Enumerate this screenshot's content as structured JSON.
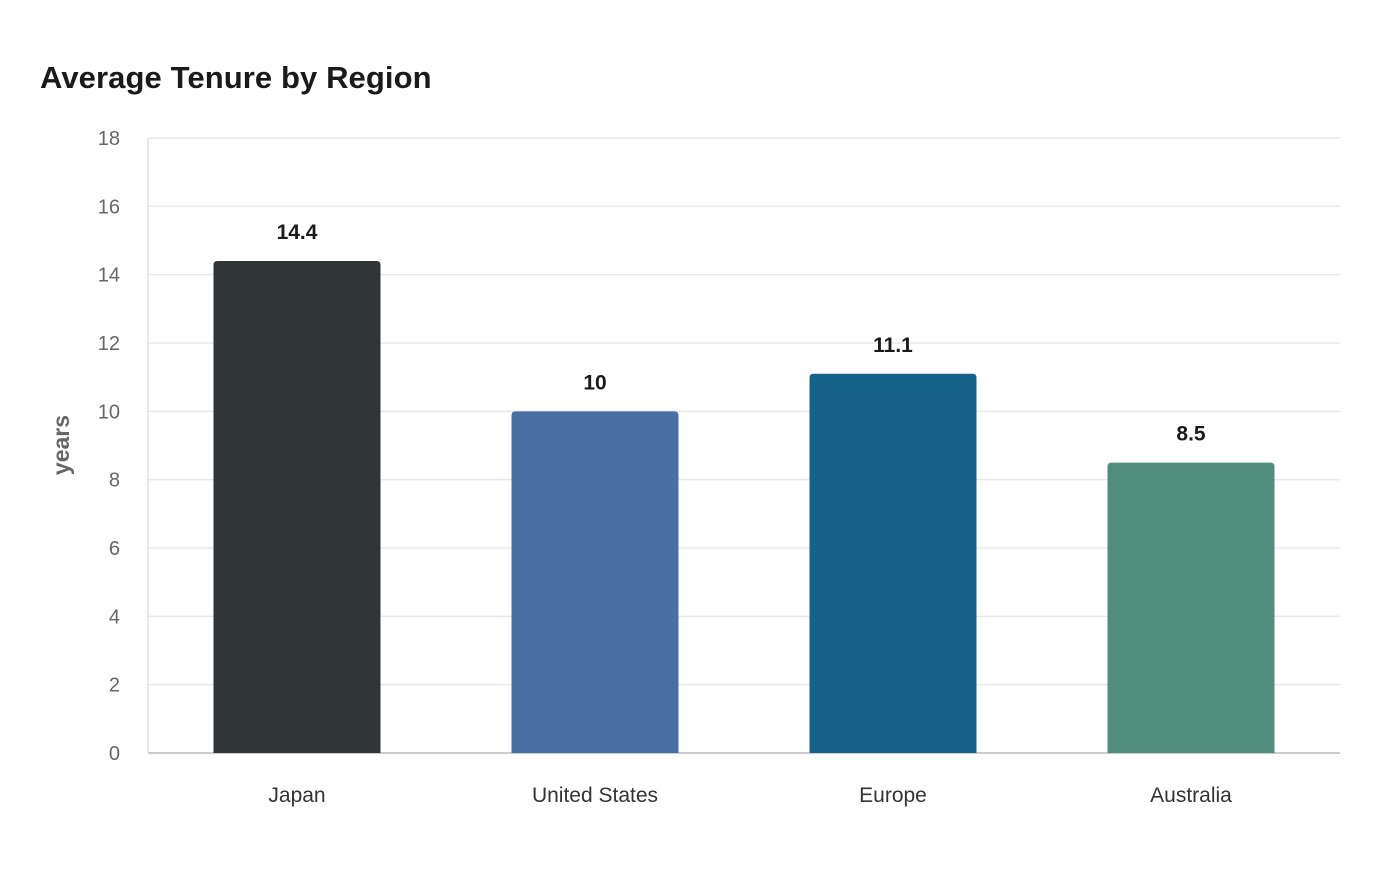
{
  "chart_data": {
    "type": "bar",
    "title": "Average Tenure by Region",
    "xlabel": "",
    "ylabel": "years",
    "categories": [
      "Japan",
      "United States",
      "Europe",
      "Australia"
    ],
    "values": [
      14.4,
      10,
      11.1,
      8.5
    ],
    "value_labels": [
      "14.4",
      "10",
      "11.1",
      "8.5"
    ],
    "colors": [
      "#2e3638",
      "#4a6fa5",
      "#176087",
      "#4e8e7b"
    ],
    "ylim": [
      0,
      18
    ],
    "yticks": [
      0,
      2,
      4,
      6,
      8,
      10,
      12,
      14,
      16,
      18
    ],
    "grid": true,
    "legend": "none"
  }
}
